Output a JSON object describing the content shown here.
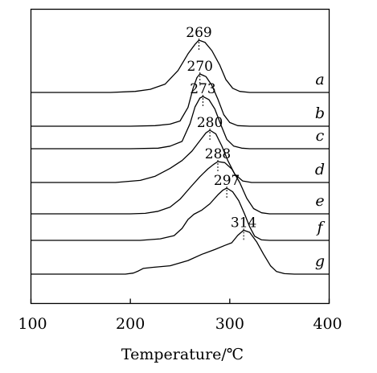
{
  "chart_data": {
    "type": "line",
    "xlabel": "Temperature/℃",
    "ylabel": "",
    "xlim": [
      100,
      400
    ],
    "xticks": [
      100,
      200,
      300,
      400
    ],
    "grid": false,
    "legend": "none",
    "series": [
      {
        "name": "a",
        "peak_label": "269",
        "peak_x": 269,
        "points": [
          [
            100,
            0
          ],
          [
            180,
            0
          ],
          [
            205,
            0.02
          ],
          [
            220,
            0.06
          ],
          [
            235,
            0.16
          ],
          [
            248,
            0.42
          ],
          [
            258,
            0.74
          ],
          [
            265,
            0.92
          ],
          [
            269,
            1.0
          ],
          [
            275,
            0.96
          ],
          [
            282,
            0.8
          ],
          [
            290,
            0.52
          ],
          [
            296,
            0.25
          ],
          [
            303,
            0.08
          ],
          [
            310,
            0.02
          ],
          [
            320,
            0
          ],
          [
            400,
            0
          ]
        ]
      },
      {
        "name": "b",
        "peak_label": "270",
        "peak_x": 270,
        "points": [
          [
            100,
            0
          ],
          [
            200,
            0
          ],
          [
            225,
            0.01
          ],
          [
            240,
            0.04
          ],
          [
            250,
            0.1
          ],
          [
            258,
            0.36
          ],
          [
            263,
            0.72
          ],
          [
            267,
            0.93
          ],
          [
            270,
            1.0
          ],
          [
            276,
            0.95
          ],
          [
            282,
            0.78
          ],
          [
            288,
            0.52
          ],
          [
            294,
            0.22
          ],
          [
            300,
            0.07
          ],
          [
            308,
            0.01
          ],
          [
            320,
            0
          ],
          [
            400,
            0
          ]
        ]
      },
      {
        "name": "c",
        "peak_label": "273",
        "peak_x": 273,
        "points": [
          [
            100,
            0
          ],
          [
            200,
            0
          ],
          [
            228,
            0.01
          ],
          [
            240,
            0.05
          ],
          [
            252,
            0.14
          ],
          [
            260,
            0.48
          ],
          [
            265,
            0.8
          ],
          [
            270,
            0.97
          ],
          [
            273,
            1.0
          ],
          [
            279,
            0.94
          ],
          [
            285,
            0.76
          ],
          [
            291,
            0.46
          ],
          [
            297,
            0.18
          ],
          [
            304,
            0.05
          ],
          [
            312,
            0.01
          ],
          [
            320,
            0
          ],
          [
            400,
            0
          ]
        ]
      },
      {
        "name": "d",
        "peak_label": "280",
        "peak_x": 280,
        "points": [
          [
            100,
            0
          ],
          [
            185,
            0
          ],
          [
            210,
            0.04
          ],
          [
            225,
            0.12
          ],
          [
            240,
            0.27
          ],
          [
            252,
            0.42
          ],
          [
            262,
            0.6
          ],
          [
            270,
            0.8
          ],
          [
            276,
            0.95
          ],
          [
            280,
            1.0
          ],
          [
            286,
            0.93
          ],
          [
            292,
            0.7
          ],
          [
            298,
            0.42
          ],
          [
            305,
            0.16
          ],
          [
            313,
            0.03
          ],
          [
            322,
            0
          ],
          [
            400,
            0
          ]
        ]
      },
      {
        "name": "e",
        "peak_label": "288",
        "peak_x": 288,
        "points": [
          [
            100,
            0
          ],
          [
            200,
            0
          ],
          [
            215,
            0.01
          ],
          [
            228,
            0.05
          ],
          [
            240,
            0.13
          ],
          [
            250,
            0.28
          ],
          [
            260,
            0.5
          ],
          [
            270,
            0.71
          ],
          [
            278,
            0.86
          ],
          [
            284,
            0.95
          ],
          [
            288,
            1.0
          ],
          [
            295,
            0.98
          ],
          [
            302,
            0.86
          ],
          [
            310,
            0.6
          ],
          [
            317,
            0.3
          ],
          [
            324,
            0.1
          ],
          [
            332,
            0.02
          ],
          [
            340,
            0
          ],
          [
            400,
            0
          ]
        ]
      },
      {
        "name": "f",
        "peak_label": "297",
        "peak_x": 297,
        "points": [
          [
            100,
            0
          ],
          [
            210,
            0
          ],
          [
            230,
            0.03
          ],
          [
            244,
            0.09
          ],
          [
            252,
            0.23
          ],
          [
            258,
            0.4
          ],
          [
            264,
            0.5
          ],
          [
            272,
            0.58
          ],
          [
            280,
            0.7
          ],
          [
            288,
            0.87
          ],
          [
            293,
            0.96
          ],
          [
            297,
            1.0
          ],
          [
            303,
            0.93
          ],
          [
            309,
            0.76
          ],
          [
            315,
            0.5
          ],
          [
            320,
            0.26
          ],
          [
            325,
            0.08
          ],
          [
            332,
            0.01
          ],
          [
            340,
            0
          ],
          [
            400,
            0
          ]
        ]
      },
      {
        "name": "g",
        "peak_label": "314",
        "peak_x": 314,
        "points": [
          [
            100,
            0
          ],
          [
            195,
            0
          ],
          [
            203,
            0.02
          ],
          [
            208,
            0.06
          ],
          [
            213,
            0.11
          ],
          [
            222,
            0.13
          ],
          [
            240,
            0.16
          ],
          [
            258,
            0.26
          ],
          [
            272,
            0.38
          ],
          [
            285,
            0.47
          ],
          [
            295,
            0.55
          ],
          [
            302,
            0.6
          ],
          [
            308,
            0.74
          ],
          [
            314,
            0.84
          ],
          [
            320,
            0.8
          ],
          [
            327,
            0.62
          ],
          [
            334,
            0.38
          ],
          [
            341,
            0.16
          ],
          [
            347,
            0.05
          ],
          [
            355,
            0.01
          ],
          [
            365,
            0
          ],
          [
            400,
            0
          ]
        ]
      }
    ]
  }
}
